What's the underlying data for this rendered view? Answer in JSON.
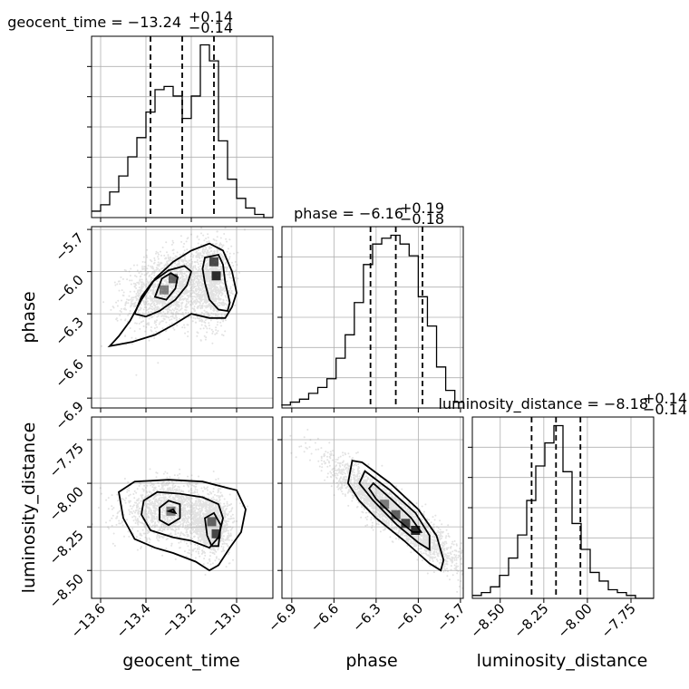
{
  "chart_data": {
    "type": "corner",
    "parameters": [
      "geocent_time",
      "phase",
      "luminosity_distance"
    ],
    "axis_labels": [
      "geocent_time",
      "phase",
      "luminosity_distance"
    ],
    "ranges": {
      "geocent_time": [
        -13.64,
        -12.84
      ],
      "phase": [
        -6.97,
        -5.68
      ],
      "luminosity_distance": [
        -8.66,
        -7.62
      ]
    },
    "ticks": {
      "geocent_time": [
        -13.6,
        -13.4,
        -13.2,
        -13.0
      ],
      "phase": [
        -6.9,
        -6.6,
        -6.3,
        -6.0,
        -5.7
      ],
      "luminosity_distance": [
        -8.5,
        -8.25,
        -8.0,
        -7.75
      ]
    },
    "tick_labels": {
      "geocent_time": [
        "−13.6",
        "−13.4",
        "−13.2",
        "−13.0"
      ],
      "phase": [
        "−6.9",
        "−6.6",
        "−6.3",
        "−6.0",
        "−5.7"
      ],
      "luminosity_distance": [
        "−8.50",
        "−8.25",
        "−8.00",
        "−7.75"
      ]
    },
    "titles": [
      {
        "param": "geocent_time",
        "median": -13.24,
        "plus": 0.14,
        "minus": 0.14,
        "text": "geocent_time = −13.24",
        "sup": "+0.14",
        "sub": "−0.14"
      },
      {
        "param": "phase",
        "median": -6.16,
        "plus": 0.19,
        "minus": 0.18,
        "text": "phase = −6.16",
        "sup": "+0.19",
        "sub": "−0.18"
      },
      {
        "param": "luminosity_distance",
        "median": -8.18,
        "plus": 0.14,
        "minus": 0.14,
        "text": "luminosity_distance = −8.18",
        "sup": "+0.14",
        "sub": "−0.14"
      }
    ],
    "histograms": {
      "geocent_time": {
        "bin_edges": [
          -13.64,
          -13.6,
          -13.56,
          -13.52,
          -13.48,
          -13.44,
          -13.4,
          -13.36,
          -13.32,
          -13.28,
          -13.24,
          -13.2,
          -13.16,
          -13.12,
          -13.08,
          -13.04,
          -13.0,
          -12.96,
          -12.92,
          -12.88,
          -12.84
        ],
        "counts": [
          2,
          4,
          8,
          13,
          19,
          25,
          33,
          40,
          41,
          38,
          31,
          38,
          54,
          49,
          24,
          12,
          6,
          3,
          1,
          0
        ],
        "quantiles": [
          -13.38,
          -13.24,
          -13.1
        ]
      },
      "phase": {
        "bin_edges": [
          -6.975,
          -6.91,
          -6.845,
          -6.78,
          -6.715,
          -6.65,
          -6.585,
          -6.52,
          -6.455,
          -6.39,
          -6.325,
          -6.26,
          -6.195,
          -6.13,
          -6.065,
          -6.0,
          -5.935,
          -5.87,
          -5.805,
          -5.74,
          -5.675
        ],
        "counts": [
          1,
          2,
          3,
          5,
          7,
          10,
          17,
          25,
          36,
          49,
          56,
          58,
          59,
          56,
          52,
          38,
          28,
          14,
          6,
          2
        ],
        "quantiles": [
          -6.34,
          -6.16,
          -5.97
        ]
      },
      "luminosity_distance": {
        "bin_edges": [
          -8.66,
          -8.608,
          -8.556,
          -8.504,
          -8.452,
          -8.4,
          -8.348,
          -8.296,
          -8.244,
          -8.192,
          -8.14,
          -8.088,
          -8.036,
          -7.984,
          -7.932,
          -7.88,
          -7.828,
          -7.776,
          -7.724,
          -7.672,
          -7.62
        ],
        "counts": [
          1,
          2,
          4,
          8,
          14,
          22,
          34,
          46,
          54,
          60,
          44,
          26,
          17,
          9,
          6,
          3,
          2,
          1,
          0,
          0
        ],
        "quantiles": [
          -8.32,
          -8.18,
          -8.04
        ]
      }
    },
    "scatter_2d": [
      {
        "x": "geocent_time",
        "y": "phase",
        "modes": [
          {
            "cx": -13.3,
            "cy": -6.12,
            "sx": 0.08,
            "sy": 0.12,
            "n": 1500,
            "rho": 0.3
          },
          {
            "cx": -13.11,
            "cy": -6.08,
            "sx": 0.035,
            "sy": 0.13,
            "n": 1100,
            "rho": 0.1
          }
        ],
        "peaks": [
          [
            -13.32,
            -6.13
          ],
          [
            -13.28,
            -6.05
          ],
          [
            -13.1,
            -5.93
          ],
          [
            -13.09,
            -6.03
          ]
        ]
      },
      {
        "x": "geocent_time",
        "y": "luminosity_distance",
        "modes": [
          {
            "cx": -13.29,
            "cy": -8.16,
            "sx": 0.09,
            "sy": 0.07,
            "n": 1500,
            "rho": 0
          },
          {
            "cx": -13.11,
            "cy": -8.24,
            "sx": 0.035,
            "sy": 0.07,
            "n": 1100,
            "rho": 0
          }
        ],
        "peaks": [
          [
            -13.29,
            -8.16
          ],
          [
            -13.11,
            -8.22
          ],
          [
            -13.09,
            -8.29
          ]
        ]
      },
      {
        "x": "phase",
        "y": "luminosity_distance",
        "modes": [
          {
            "cx": -6.16,
            "cy": -8.18,
            "sx": 0.2,
            "sy": 0.13,
            "n": 2600,
            "rho": -0.92
          }
        ],
        "peaks": [
          [
            -6.24,
            -8.12
          ],
          [
            -6.16,
            -8.18
          ],
          [
            -6.09,
            -8.23
          ],
          [
            -6.02,
            -8.27
          ]
        ]
      }
    ],
    "contours": [
      {
        "x": "geocent_time",
        "y": "phase",
        "levels": [
          [
            [
              -13.56,
              -6.53
            ],
            [
              -13.52,
              -6.46
            ],
            [
              -13.47,
              -6.35
            ],
            [
              -13.42,
              -6.2
            ],
            [
              -13.36,
              -6.05
            ],
            [
              -13.28,
              -5.93
            ],
            [
              -13.2,
              -5.85
            ],
            [
              -13.12,
              -5.8
            ],
            [
              -13.06,
              -5.85
            ],
            [
              -13.02,
              -6.0
            ],
            [
              -13.0,
              -6.15
            ],
            [
              -13.02,
              -6.25
            ],
            [
              -13.05,
              -6.33
            ],
            [
              -13.12,
              -6.33
            ],
            [
              -13.2,
              -6.3
            ],
            [
              -13.28,
              -6.38
            ],
            [
              -13.36,
              -6.45
            ],
            [
              -13.46,
              -6.5
            ],
            [
              -13.56,
              -6.53
            ]
          ],
          [
            [
              -13.45,
              -6.3
            ],
            [
              -13.42,
              -6.18
            ],
            [
              -13.37,
              -6.07
            ],
            [
              -13.3,
              -5.99
            ],
            [
              -13.23,
              -5.96
            ],
            [
              -13.2,
              -6.0
            ],
            [
              -13.22,
              -6.1
            ],
            [
              -13.27,
              -6.2
            ],
            [
              -13.34,
              -6.28
            ],
            [
              -13.4,
              -6.32
            ],
            [
              -13.45,
              -6.3
            ]
          ],
          [
            [
              -13.14,
              -5.9
            ],
            [
              -13.08,
              -5.88
            ],
            [
              -13.06,
              -5.95
            ],
            [
              -13.05,
              -6.08
            ],
            [
              -13.03,
              -6.22
            ],
            [
              -13.04,
              -6.28
            ],
            [
              -13.08,
              -6.27
            ],
            [
              -13.12,
              -6.2
            ],
            [
              -13.14,
              -6.08
            ],
            [
              -13.15,
              -5.98
            ],
            [
              -13.14,
              -5.9
            ]
          ],
          [
            [
              -13.36,
              -6.18
            ],
            [
              -13.33,
              -6.05
            ],
            [
              -13.29,
              -6.01
            ],
            [
              -13.26,
              -6.04
            ],
            [
              -13.27,
              -6.12
            ],
            [
              -13.31,
              -6.2
            ],
            [
              -13.36,
              -6.18
            ]
          ]
        ]
      },
      {
        "x": "geocent_time",
        "y": "luminosity_distance",
        "levels": [
          [
            [
              -13.52,
              -8.05
            ],
            [
              -13.45,
              -7.99
            ],
            [
              -13.3,
              -7.98
            ],
            [
              -13.15,
              -7.99
            ],
            [
              -13.0,
              -8.04
            ],
            [
              -12.96,
              -8.15
            ],
            [
              -12.98,
              -8.28
            ],
            [
              -13.03,
              -8.37
            ],
            [
              -13.08,
              -8.47
            ],
            [
              -13.12,
              -8.5
            ],
            [
              -13.18,
              -8.45
            ],
            [
              -13.28,
              -8.4
            ],
            [
              -13.36,
              -8.37
            ],
            [
              -13.45,
              -8.32
            ],
            [
              -13.5,
              -8.2
            ],
            [
              -13.52,
              -8.05
            ]
          ],
          [
            [
              -13.41,
              -8.1
            ],
            [
              -13.35,
              -8.05
            ],
            [
              -13.25,
              -8.06
            ],
            [
              -13.15,
              -8.08
            ],
            [
              -13.08,
              -8.12
            ],
            [
              -13.06,
              -8.2
            ],
            [
              -13.08,
              -8.31
            ],
            [
              -13.12,
              -8.37
            ],
            [
              -13.2,
              -8.33
            ],
            [
              -13.28,
              -8.31
            ],
            [
              -13.38,
              -8.27
            ],
            [
              -13.42,
              -8.18
            ],
            [
              -13.41,
              -8.1
            ]
          ],
          [
            [
              -13.34,
              -8.14
            ],
            [
              -13.3,
              -8.1
            ],
            [
              -13.25,
              -8.12
            ],
            [
              -13.25,
              -8.2
            ],
            [
              -13.3,
              -8.24
            ],
            [
              -13.34,
              -8.21
            ],
            [
              -13.34,
              -8.14
            ]
          ],
          [
            [
              -13.14,
              -8.2
            ],
            [
              -13.1,
              -8.17
            ],
            [
              -13.07,
              -8.24
            ],
            [
              -13.08,
              -8.36
            ],
            [
              -13.11,
              -8.36
            ],
            [
              -13.13,
              -8.3
            ],
            [
              -13.14,
              -8.2
            ]
          ],
          [
            [
              -13.3,
              -8.16
            ],
            [
              -13.28,
              -8.15
            ],
            [
              -13.27,
              -8.17
            ],
            [
              -13.3,
              -8.16
            ]
          ]
        ]
      },
      {
        "x": "phase",
        "y": "luminosity_distance",
        "levels": [
          [
            [
              -6.47,
              -7.87
            ],
            [
              -6.4,
              -7.88
            ],
            [
              -6.2,
              -8.0
            ],
            [
              -6.0,
              -8.15
            ],
            [
              -5.87,
              -8.3
            ],
            [
              -5.82,
              -8.44
            ],
            [
              -5.84,
              -8.5
            ],
            [
              -5.92,
              -8.46
            ],
            [
              -6.1,
              -8.33
            ],
            [
              -6.3,
              -8.2
            ],
            [
              -6.42,
              -8.1
            ],
            [
              -6.5,
              -8.0
            ],
            [
              -6.47,
              -7.87
            ]
          ],
          [
            [
              -6.38,
              -7.93
            ],
            [
              -6.2,
              -8.04
            ],
            [
              -6.02,
              -8.17
            ],
            [
              -5.92,
              -8.3
            ],
            [
              -5.92,
              -8.38
            ],
            [
              -6.0,
              -8.34
            ],
            [
              -6.15,
              -8.24
            ],
            [
              -6.32,
              -8.1
            ],
            [
              -6.42,
              -8.0
            ],
            [
              -6.38,
              -7.93
            ]
          ],
          [
            [
              -6.32,
              -8.0
            ],
            [
              -6.18,
              -8.1
            ],
            [
              -6.05,
              -8.2
            ],
            [
              -5.98,
              -8.28
            ],
            [
              -6.04,
              -8.28
            ],
            [
              -6.16,
              -8.2
            ],
            [
              -6.3,
              -8.09
            ],
            [
              -6.35,
              -8.03
            ],
            [
              -6.32,
              -8.0
            ]
          ]
        ]
      }
    ]
  }
}
